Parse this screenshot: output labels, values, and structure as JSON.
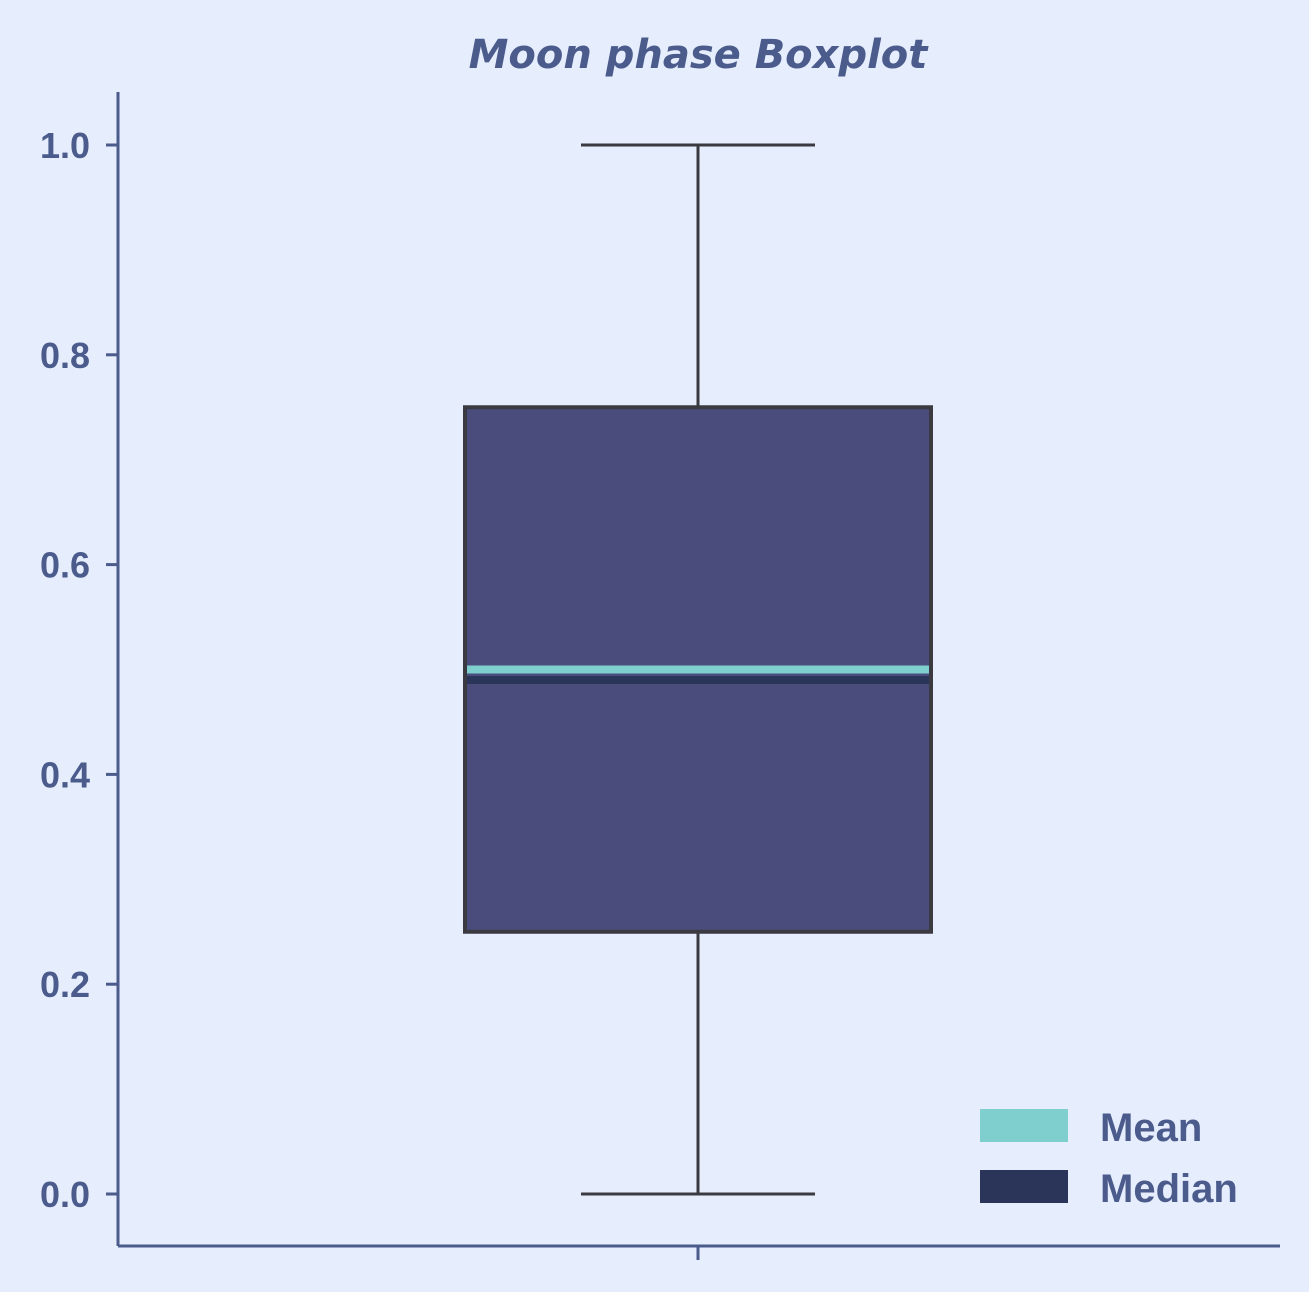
{
  "chart_data": {
    "type": "boxplot",
    "title": "Moon phase Boxplot",
    "xlabel": "",
    "ylabel": "",
    "ylim": [
      -0.05,
      1.05
    ],
    "y_ticks": [
      0.0,
      0.2,
      0.4,
      0.6,
      0.8,
      1.0
    ],
    "y_tick_labels": [
      "0.0",
      "0.2",
      "0.4",
      "0.6",
      "0.8",
      "1.0"
    ],
    "boxes": [
      {
        "whisker_low": 0.0,
        "q1": 0.25,
        "median": 0.49,
        "mean": 0.5,
        "q3": 0.75,
        "whisker_high": 1.0
      }
    ],
    "legend": {
      "placement": "lower-right",
      "items": [
        {
          "label": "Mean",
          "color": "#7ecfce"
        },
        {
          "label": "Median",
          "color": "#2b3459"
        }
      ]
    },
    "grid": false
  },
  "colors": {
    "background": "#e6edfd",
    "axis": "#4a5b8c",
    "box_fill": "#4a4c7c",
    "box_edge": "#3a3a40",
    "mean_line": "#7ecfce",
    "median_line": "#2b3459"
  }
}
